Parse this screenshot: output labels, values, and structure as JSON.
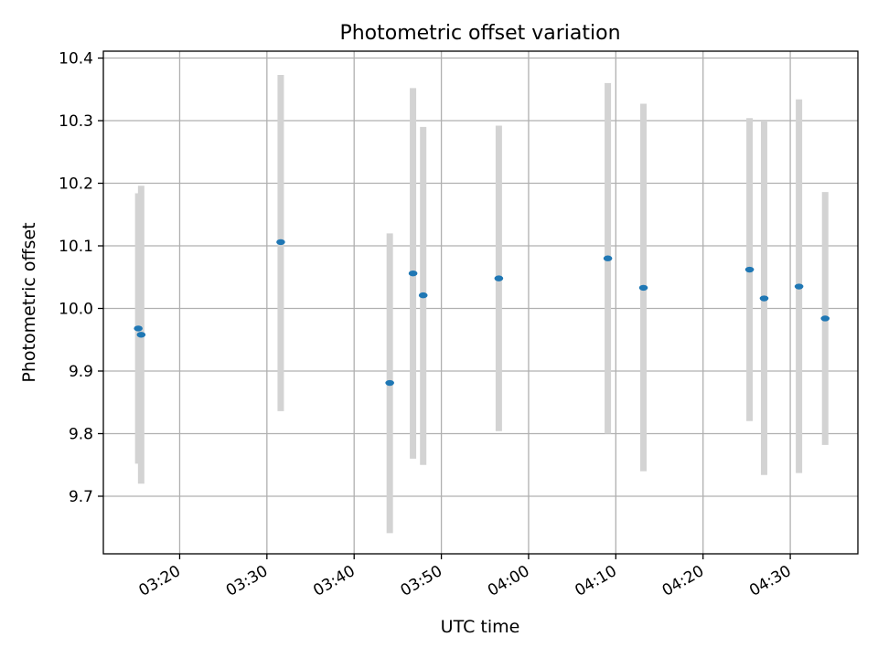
{
  "chart_data": {
    "type": "scatter",
    "title": "Photometric offset variation",
    "xlabel": "UTC time",
    "ylabel": "Photometric offset",
    "x_ticks": [
      "03:20",
      "03:30",
      "03:40",
      "03:50",
      "04:00",
      "04:10",
      "04:20",
      "04:30"
    ],
    "y_ticks": [
      "9.7",
      "9.8",
      "9.9",
      "10.0",
      "10.1",
      "10.2",
      "10.3",
      "10.4"
    ],
    "xlim": [
      "03:11:15",
      "04:37:45"
    ],
    "ylim": [
      9.608,
      10.411
    ],
    "grid": true,
    "colors": {
      "marker": "#1f77b4",
      "errorbar": "#d3d3d3",
      "grid": "#b0b0b0"
    },
    "points": [
      {
        "x": "03:15:15",
        "y": 9.968,
        "yerr_low": 9.752,
        "yerr_high": 10.184
      },
      {
        "x": "03:15:35",
        "y": 9.958,
        "yerr_low": 9.72,
        "yerr_high": 10.196
      },
      {
        "x": "03:31:35",
        "y": 10.106,
        "yerr_low": 9.836,
        "yerr_high": 10.373
      },
      {
        "x": "03:44:05",
        "y": 9.881,
        "yerr_low": 9.641,
        "yerr_high": 10.12
      },
      {
        "x": "03:46:45",
        "y": 10.056,
        "yerr_low": 9.76,
        "yerr_high": 10.352
      },
      {
        "x": "03:47:55",
        "y": 10.021,
        "yerr_low": 9.75,
        "yerr_high": 10.29
      },
      {
        "x": "03:56:35",
        "y": 10.048,
        "yerr_low": 9.804,
        "yerr_high": 10.292
      },
      {
        "x": "04:09:05",
        "y": 10.08,
        "yerr_low": 9.8,
        "yerr_high": 10.36
      },
      {
        "x": "04:13:10",
        "y": 10.033,
        "yerr_low": 9.74,
        "yerr_high": 10.327
      },
      {
        "x": "04:25:20",
        "y": 10.062,
        "yerr_low": 9.82,
        "yerr_high": 10.304
      },
      {
        "x": "04:27:00",
        "y": 10.016,
        "yerr_low": 9.734,
        "yerr_high": 10.3
      },
      {
        "x": "04:31:00",
        "y": 10.035,
        "yerr_low": 9.737,
        "yerr_high": 10.334
      },
      {
        "x": "04:34:00",
        "y": 9.984,
        "yerr_low": 9.782,
        "yerr_high": 10.186
      }
    ]
  }
}
